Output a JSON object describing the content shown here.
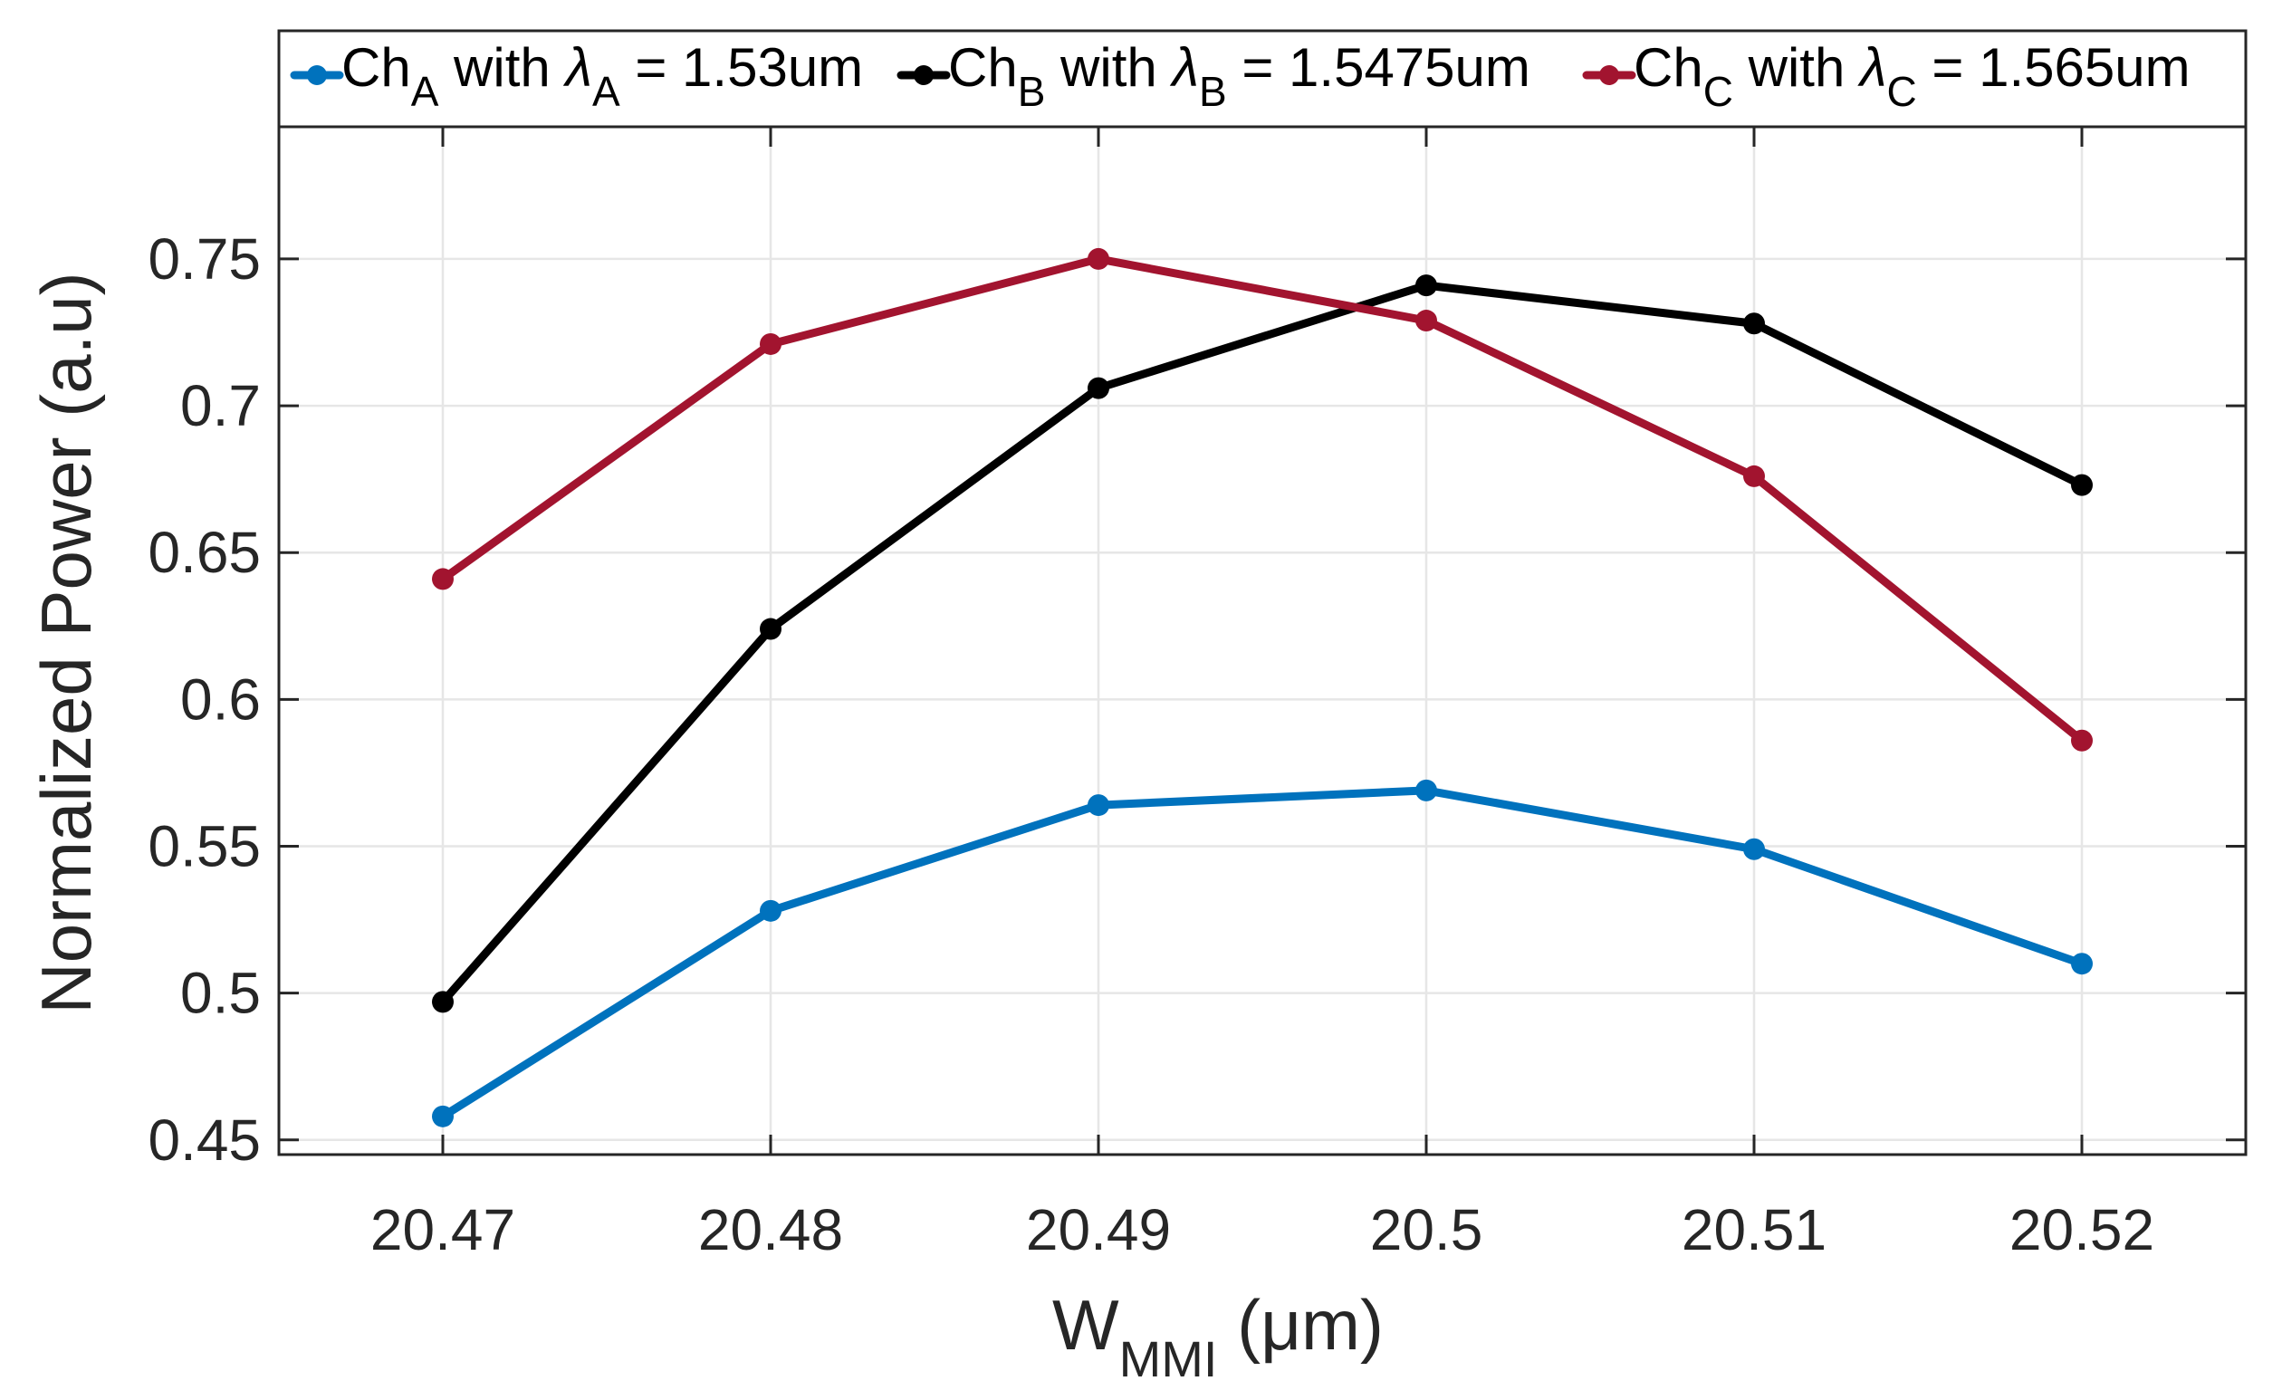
{
  "chart_data": {
    "type": "line",
    "title": "",
    "x": [
      20.47,
      20.48,
      20.49,
      20.5,
      20.51,
      20.52
    ],
    "x_tick_labels": [
      "20.47",
      "20.48",
      "20.49",
      "20.5",
      "20.51",
      "20.52"
    ],
    "xlim": [
      20.465,
      20.525
    ],
    "ylim": [
      0.445,
      0.795
    ],
    "y_ticks": [
      0.45,
      0.5,
      0.55,
      0.6,
      0.65,
      0.7,
      0.75
    ],
    "y_tick_labels": [
      "0.45",
      "0.5",
      "0.55",
      "0.6",
      "0.65",
      "0.7",
      "0.75"
    ],
    "xlabel": {
      "main": "W",
      "subscript": "MMI",
      "unit": " (μm)"
    },
    "ylabel": "Normalized Power (a.u)",
    "grid": true,
    "legend_location": "top",
    "series": [
      {
        "name": "ChA with λA = 1.53um",
        "label_parts": {
          "ch": "Ch",
          "sub": "A",
          "mid": " with ",
          "lambda": "λ",
          "lambda_sub": "A",
          "value": " = 1.53um"
        },
        "color": "#0072BD",
        "values": [
          0.458,
          0.528,
          0.564,
          0.569,
          0.549,
          0.51
        ]
      },
      {
        "name": "ChB with λB = 1.5475um",
        "label_parts": {
          "ch": "Ch",
          "sub": "B",
          "mid": " with ",
          "lambda": "λ",
          "lambda_sub": "B",
          "value": " = 1.5475um"
        },
        "color": "#000000",
        "values": [
          0.497,
          0.624,
          0.706,
          0.741,
          0.728,
          0.673
        ]
      },
      {
        "name": "ChC with λC = 1.565um",
        "label_parts": {
          "ch": "Ch",
          "sub": "C",
          "mid": " with ",
          "lambda": "λ",
          "lambda_sub": "C",
          "value": " = 1.565um"
        },
        "color": "#A2142F",
        "values": [
          0.641,
          0.721,
          0.75,
          0.729,
          0.676,
          0.586
        ]
      }
    ]
  }
}
